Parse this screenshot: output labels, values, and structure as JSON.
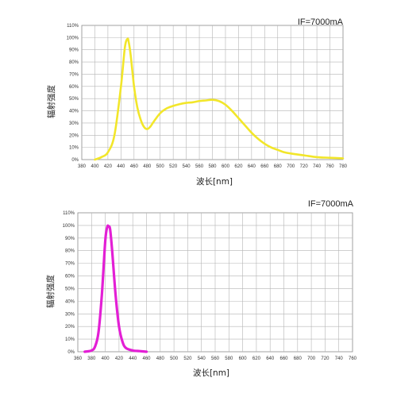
{
  "chart_data": [
    {
      "type": "line",
      "annotation": "IF=7000mA",
      "xlabel": "波长[nm]",
      "ylabel": "辐射强度",
      "xlim": [
        380,
        780
      ],
      "ylim": [
        0,
        110
      ],
      "grid": true,
      "x_ticks": [
        "380",
        "400",
        "420",
        "440",
        "460",
        "480",
        "500",
        "520",
        "540",
        "560",
        "580",
        "600",
        "620",
        "640",
        "660",
        "680",
        "700",
        "720",
        "740",
        "760",
        "780"
      ],
      "y_ticks": [
        "0%",
        "10%",
        "20%",
        "30%",
        "40%",
        "50%",
        "60%",
        "70%",
        "80%",
        "90%",
        "100%",
        "110%"
      ],
      "line_color": "#f2e62a",
      "series": [
        {
          "x": [
            400,
            410,
            420,
            430,
            440,
            446,
            450,
            452,
            455,
            460,
            465,
            470,
            475,
            480,
            485,
            490,
            500,
            510,
            520,
            530,
            540,
            550,
            560,
            570,
            580,
            590,
            600,
            610,
            620,
            630,
            640,
            650,
            660,
            670,
            680,
            690,
            700,
            720,
            740,
            760,
            780
          ],
          "y": [
            0,
            2,
            6,
            20,
            60,
            92,
            99,
            96,
            85,
            60,
            43,
            33,
            27,
            25,
            27,
            31,
            38,
            42,
            44,
            45.5,
            46.5,
            47,
            48,
            48.5,
            49,
            48,
            45,
            40,
            34,
            28,
            22,
            17,
            13,
            10,
            8,
            6,
            5,
            3.5,
            2,
            1.5,
            1
          ]
        }
      ]
    },
    {
      "type": "line",
      "annotation": "IF=7000mA",
      "xlabel": "波长[nm]",
      "ylabel": "辐射强度",
      "xlim": [
        360,
        760
      ],
      "ylim": [
        0,
        110
      ],
      "grid": true,
      "x_ticks": [
        "360",
        "380",
        "400",
        "420",
        "440",
        "460",
        "480",
        "500",
        "520",
        "540",
        "560",
        "580",
        "600",
        "620",
        "640",
        "660",
        "680",
        "700",
        "720",
        "740",
        "760"
      ],
      "y_ticks": [
        "0%",
        "10%",
        "20%",
        "30%",
        "40%",
        "50%",
        "60%",
        "70%",
        "80%",
        "90%",
        "100%",
        "110%"
      ],
      "line_color": "#e31fd5",
      "series": [
        {
          "x": [
            370,
            380,
            385,
            390,
            395,
            400,
            403,
            405,
            407,
            410,
            415,
            420,
            425,
            430,
            440,
            450,
            460
          ],
          "y": [
            0,
            1,
            4,
            15,
            45,
            88,
            99,
            99,
            97,
            80,
            45,
            20,
            8,
            3,
            1,
            0.5,
            0
          ]
        }
      ]
    }
  ]
}
